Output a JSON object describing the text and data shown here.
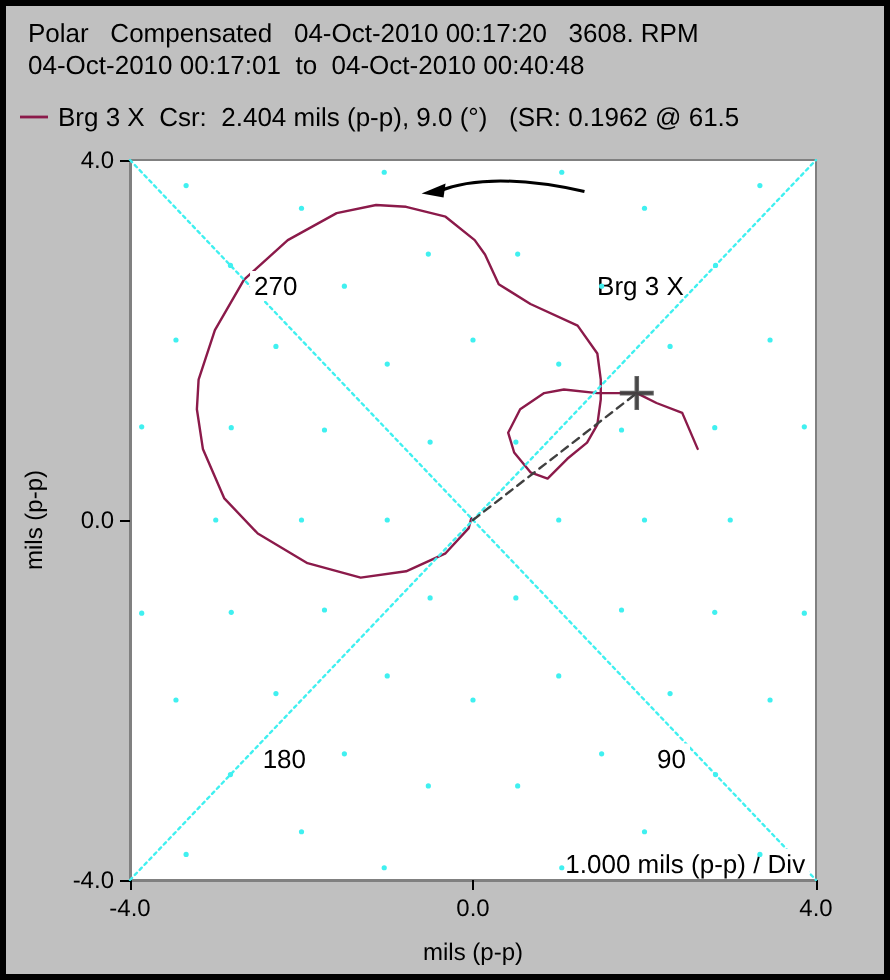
{
  "chart_data": {
    "type": "line",
    "title": "Polar   Compensated   04-Oct-2010 00:17:20   3608. RPM",
    "subtitle": "04-Oct-2010 00:17:01  to  04-Oct-2010 00:40:48",
    "xlabel": "mils (p-p)",
    "ylabel": "mils (p-p)",
    "xlim": [
      -4,
      4
    ],
    "ylim": [
      -4,
      4
    ],
    "xticks": [
      {
        "value": -4,
        "label": "-4.0"
      },
      {
        "value": 0,
        "label": "0.0"
      },
      {
        "value": 4,
        "label": "4.0"
      }
    ],
    "yticks": [
      {
        "value": -4,
        "label": "-4.0"
      },
      {
        "value": 0,
        "label": "0.0"
      },
      {
        "value": 4,
        "label": "4.0"
      }
    ],
    "legend": "top left",
    "marker": "none",
    "line_style": "solid",
    "annotations": [
      "270",
      "Brg 3 X",
      "180",
      "90",
      "1.000 mils (p-p) / Div"
    ],
    "series": [
      {
        "name": "Brg 3 X  Csr:  2.404 mils (p-p), 9.0 (°)   (SR: 0.1962 @ 61.5",
        "color": "#8b1a4a",
        "x": [
          2.62,
          2.44,
          2.14,
          1.91,
          1.45,
          1.06,
          0.83,
          0.55,
          0.41,
          0.48,
          0.67,
          0.87,
          1.1,
          1.33,
          1.45,
          1.49,
          1.49,
          1.45,
          1.22,
          0.67,
          0.3,
          0.14,
          0.02,
          -0.32,
          -0.78,
          -1.13,
          -1.59,
          -2.16,
          -2.67,
          -3.01,
          -3.2,
          -3.22,
          -3.15,
          -2.9,
          -2.51,
          -1.93,
          -1.31,
          -0.78,
          -0.32,
          -0.05,
          -0.02
        ],
        "values": [
          0.79,
          1.19,
          1.3,
          1.41,
          1.41,
          1.45,
          1.41,
          1.23,
          0.97,
          0.75,
          0.53,
          0.46,
          0.68,
          0.86,
          1.06,
          1.34,
          1.56,
          1.85,
          2.16,
          2.4,
          2.62,
          2.95,
          3.11,
          3.37,
          3.48,
          3.5,
          3.41,
          3.11,
          2.67,
          2.11,
          1.56,
          1.23,
          0.79,
          0.24,
          -0.15,
          -0.48,
          -0.64,
          -0.57,
          -0.37,
          -0.09,
          0.02
        ]
      },
      {
        "type": "line",
        "color": "#40f0f0",
        "line_style": "dotted",
        "x": [
          -4,
          4
        ],
        "values": [
          4,
          -4
        ]
      },
      {
        "type": "line",
        "color": "#40f0f0",
        "line_style": "dotted",
        "x": [
          -4,
          4
        ],
        "values": [
          -4,
          4
        ]
      },
      {
        "type": "line",
        "color": "#404040",
        "line_style": "dashed",
        "x": [
          0,
          1.91
        ],
        "values": [
          0,
          1.41
        ]
      },
      {
        "type": "scatter",
        "color": "#404040",
        "marker": "cross",
        "x": [
          1.91
        ],
        "values": [
          1.41
        ]
      }
    ]
  }
}
